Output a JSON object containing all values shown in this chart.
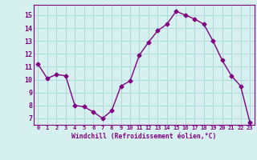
{
  "hours": [
    0,
    1,
    2,
    3,
    4,
    5,
    6,
    7,
    8,
    9,
    10,
    11,
    12,
    13,
    14,
    15,
    16,
    17,
    18,
    19,
    20,
    21,
    22,
    23
  ],
  "values": [
    11.2,
    10.1,
    10.4,
    10.3,
    8.0,
    7.9,
    7.5,
    7.0,
    7.6,
    9.5,
    9.9,
    11.9,
    12.9,
    13.8,
    14.3,
    15.3,
    15.0,
    14.7,
    14.3,
    13.0,
    11.5,
    10.3,
    9.5,
    6.7
  ],
  "line_color": "#800080",
  "marker": "D",
  "marker_size": 2.5,
  "bg_color": "#d6f0f0",
  "grid_color": "#aed8d8",
  "xlabel": "Windchill (Refroidissement éolien,°C)",
  "ylim": [
    6.5,
    15.8
  ],
  "xlim": [
    -0.5,
    23.5
  ],
  "yticks": [
    7,
    8,
    9,
    10,
    11,
    12,
    13,
    14,
    15
  ],
  "tick_color": "#800080",
  "label_color": "#800080",
  "axis_color": "#800080",
  "spine_color": "#800080"
}
